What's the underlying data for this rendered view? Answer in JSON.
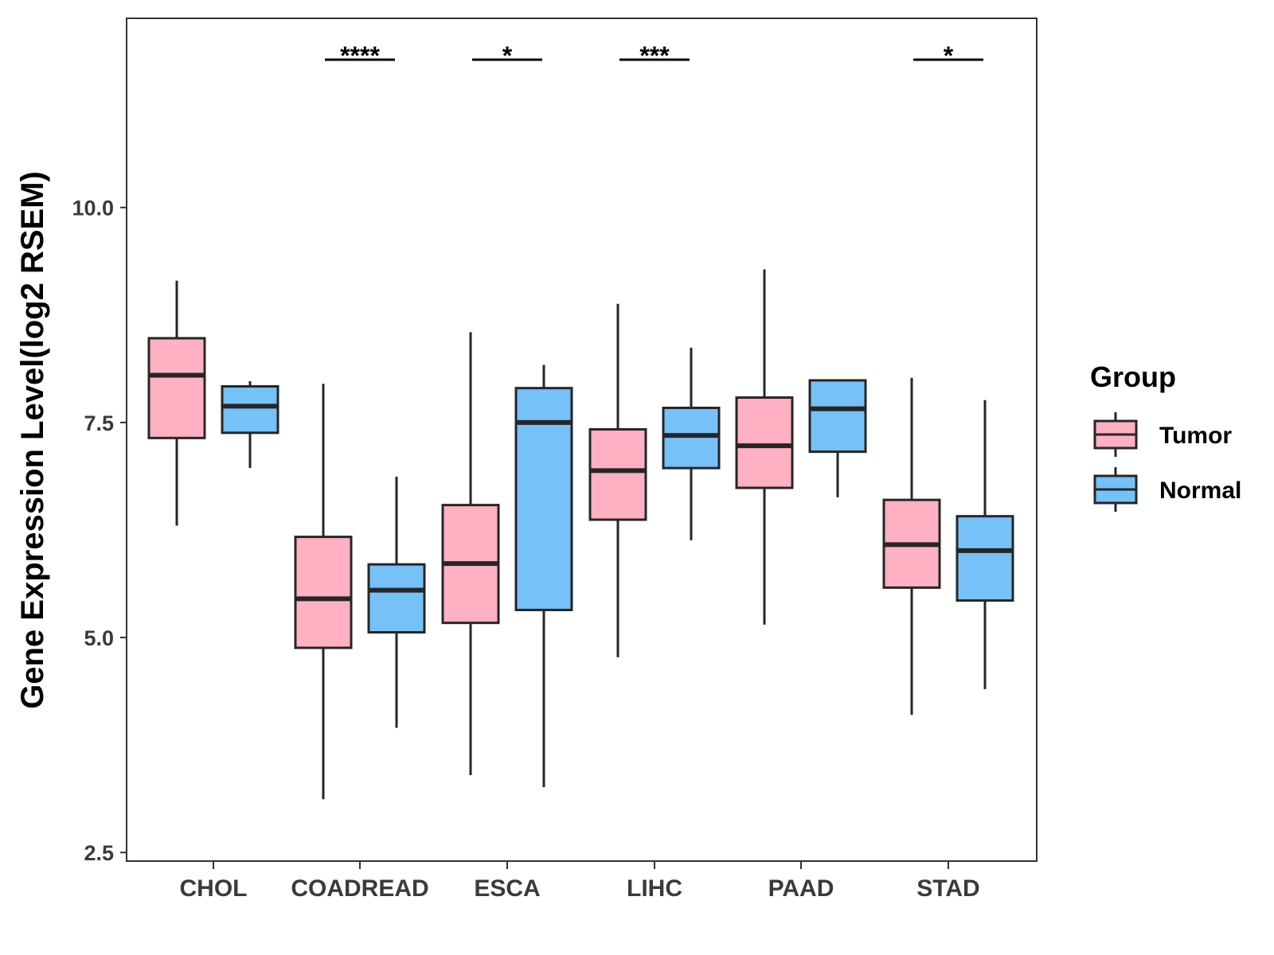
{
  "chart_data": {
    "type": "box",
    "title": "",
    "xlabel": "",
    "ylabel": "Gene Expression Level(log2 RSEM)",
    "ylim": [
      2.4,
      12.2
    ],
    "yticks": [
      2.5,
      5.0,
      7.5,
      10.0
    ],
    "ytick_labels": [
      "2.5",
      "5.0",
      "7.5",
      "10.0"
    ],
    "categories": [
      "CHOL",
      "COADREAD",
      "ESCA",
      "LIHC",
      "PAAD",
      "STAD"
    ],
    "legend": {
      "title": "Group",
      "placement": "right"
    },
    "series": [
      {
        "name": "Tumor",
        "color": "#ffb0c2",
        "boxes": [
          {
            "min": 6.3,
            "q1": 7.32,
            "median": 8.05,
            "q3": 8.48,
            "max": 9.15
          },
          {
            "min": 3.12,
            "q1": 4.88,
            "median": 5.45,
            "q3": 6.17,
            "max": 7.95
          },
          {
            "min": 3.4,
            "q1": 5.17,
            "median": 5.86,
            "q3": 6.54,
            "max": 8.55
          },
          {
            "min": 4.77,
            "q1": 6.37,
            "median": 6.94,
            "q3": 7.42,
            "max": 8.88
          },
          {
            "min": 5.15,
            "q1": 6.74,
            "median": 7.23,
            "q3": 7.79,
            "max": 9.28
          },
          {
            "min": 4.1,
            "q1": 5.58,
            "median": 6.08,
            "q3": 6.6,
            "max": 8.02
          }
        ]
      },
      {
        "name": "Normal",
        "color": "#75c1f8",
        "boxes": [
          {
            "min": 6.97,
            "q1": 7.38,
            "median": 7.69,
            "q3": 7.92,
            "max": 7.98
          },
          {
            "min": 3.95,
            "q1": 5.06,
            "median": 5.55,
            "q3": 5.85,
            "max": 6.87
          },
          {
            "min": 3.26,
            "q1": 5.32,
            "median": 7.5,
            "q3": 7.9,
            "max": 8.17
          },
          {
            "min": 6.13,
            "q1": 6.97,
            "median": 7.35,
            "q3": 7.67,
            "max": 8.37
          },
          {
            "min": 6.63,
            "q1": 7.16,
            "median": 7.66,
            "q3": 7.99,
            "max": 7.99
          },
          {
            "min": 4.4,
            "q1": 5.43,
            "median": 6.01,
            "q3": 6.41,
            "max": 7.76
          }
        ]
      }
    ],
    "significance": [
      "",
      "****",
      "*",
      "***",
      "",
      "*"
    ]
  },
  "colors": {
    "stroke": "#262626",
    "axis": "#333333",
    "tumor": "#ffb0c2",
    "normal": "#75c1f8"
  }
}
